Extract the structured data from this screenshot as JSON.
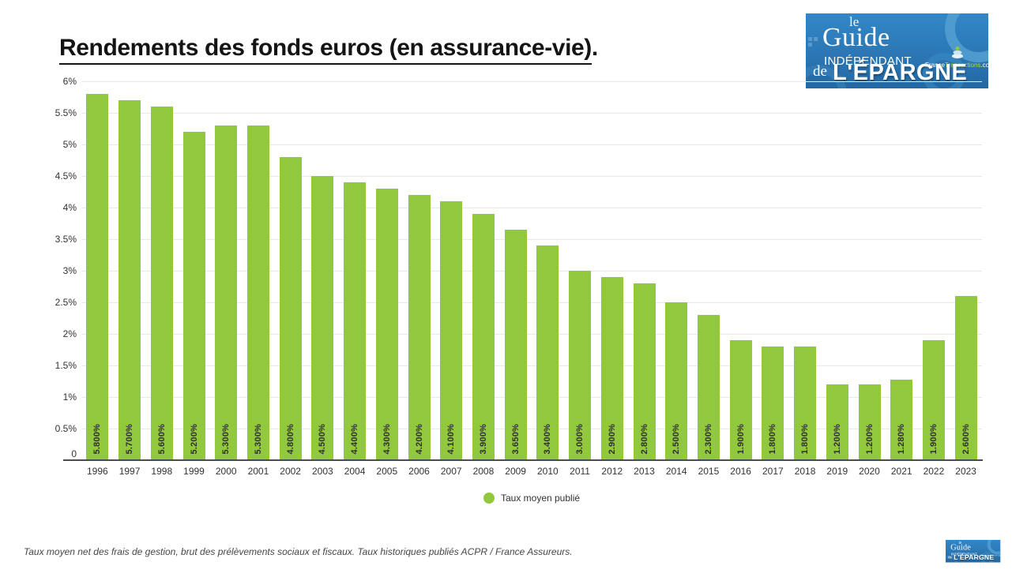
{
  "header": {
    "title": "Rendements des fonds euros (en assurance-vie)",
    "title_suffix": "."
  },
  "logo": {
    "le": "le",
    "guide": "Guide",
    "independant": "INDÉPENDANT",
    "de": "de",
    "epargne": "L'ÉPARGNE",
    "france": "France",
    "transactions": "Transactions",
    "dotcom": ".com"
  },
  "chart_data": {
    "type": "bar",
    "title": "Rendements des fonds euros (en assurance-vie)",
    "series_name": "Taux moyen publié",
    "categories": [
      "1996",
      "1997",
      "1998",
      "1999",
      "2000",
      "2001",
      "2002",
      "2003",
      "2004",
      "2005",
      "2006",
      "2007",
      "2008",
      "2009",
      "2010",
      "2011",
      "2012",
      "2013",
      "2014",
      "2015",
      "2016",
      "2017",
      "2018",
      "2019",
      "2020",
      "2021",
      "2022",
      "2023"
    ],
    "values": [
      5.8,
      5.7,
      5.6,
      5.2,
      5.3,
      5.3,
      4.8,
      4.5,
      4.4,
      4.3,
      4.2,
      4.1,
      3.9,
      3.65,
      3.4,
      3.0,
      2.9,
      2.8,
      2.5,
      2.3,
      1.9,
      1.8,
      1.8,
      1.2,
      1.2,
      1.28,
      1.9,
      2.6
    ],
    "bar_labels": [
      "5.800%",
      "5.700%",
      "5.600%",
      "5.200%",
      "5.300%",
      "5.300%",
      "4.800%",
      "4.500%",
      "4.400%",
      "4.300%",
      "4.200%",
      "4.100%",
      "3.900%",
      "3.650%",
      "3.400%",
      "3.000%",
      "2.900%",
      "2.800%",
      "2.500%",
      "2.300%",
      "1.900%",
      "1.800%",
      "1.800%",
      "1.200%",
      "1.200%",
      "1.280%",
      "1.900%",
      "2.600%"
    ],
    "y_ticks": [
      "6%",
      "5.5%",
      "5%",
      "4.5%",
      "4%",
      "3.5%",
      "3%",
      "2.5%",
      "2%",
      "1.5%",
      "1%",
      "0.5%",
      "0"
    ],
    "ylim": [
      0,
      6
    ],
    "xlabel": "",
    "ylabel": "",
    "grid": true,
    "legend_position": "bottom-center",
    "bar_color": "#92c83e"
  },
  "legend": {
    "label": "Taux moyen publié"
  },
  "footnote": "Taux moyen net des frais de gestion, brut des prélèvements sociaux et fiscaux. Taux historiques publiés ACPR / France Assureurs.",
  "colors": {
    "bar": "#92c83e",
    "logo_blue": "#2b77b4",
    "transactions_green": "#b9d642",
    "axis_line": "#4c4c4c",
    "gridline": "#e8e8e8"
  }
}
